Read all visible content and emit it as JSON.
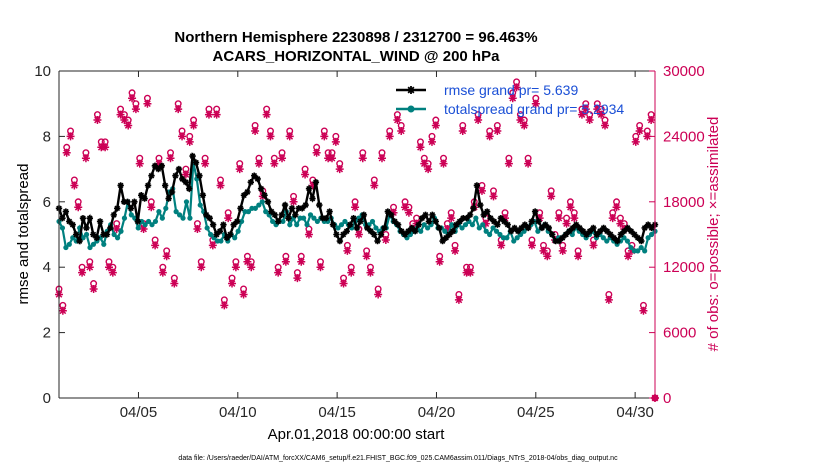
{
  "chart_data": {
    "type": "line",
    "title": "Northern Hemisphere 2230898 / 2312700 = 96.463%",
    "subtitle": "ACARS_HORIZONTAL_WIND @ 200 hPa",
    "xlabel": "Apr.01,2018 00:00:00 start",
    "ylabel_left": "rmse and totalspread",
    "ylabel_right": "# of obs: o=possible; ×=assimilated",
    "xlim": [
      1.0,
      31.0
    ],
    "ylim_left": [
      0,
      10
    ],
    "ylim_right": [
      0,
      30000
    ],
    "x_ticks": [
      {
        "value": 5,
        "label": "04/05"
      },
      {
        "value": 10,
        "label": "04/10"
      },
      {
        "value": 15,
        "label": "04/15"
      },
      {
        "value": 20,
        "label": "04/20"
      },
      {
        "value": 25,
        "label": "04/25"
      },
      {
        "value": 30,
        "label": "04/30"
      }
    ],
    "y_ticks_left": [
      "0",
      "2",
      "4",
      "6",
      "8",
      "10"
    ],
    "y_tick_values_left": [
      0,
      2,
      4,
      6,
      8,
      10
    ],
    "y_ticks_right": [
      "0",
      "6000",
      "12000",
      "18000",
      "24000",
      "30000"
    ],
    "y_tick_values_right": [
      0,
      6000,
      12000,
      18000,
      24000,
      30000
    ],
    "legend": [
      {
        "name": "rmse grand pr= 5.639",
        "color": "#000000",
        "marker": "star"
      },
      {
        "name": "totalspread grand pr= 5.2934",
        "color": "#00807f",
        "marker": "circle"
      }
    ],
    "footer": "data file: /Users/raeder/DAI/ATM_forcXX/CAM6_setup/f.e21.FHIST_BGC.f09_025.CAM6assim.011/Diags_NTrS_2018-04/obs_diag_output.nc",
    "colors": {
      "rmse": "#000000",
      "totalspread": "#00807f",
      "obs": "#cc0055",
      "legend_text": "#1a4fd6"
    },
    "series": [
      {
        "name": "rmse",
        "axis": "left",
        "values": [
          5.8,
          5.5,
          5.7,
          5.4,
          5.3,
          5.0,
          4.8,
          5.5,
          5.2,
          5.5,
          5.0,
          4.9,
          5.4,
          5.0,
          5.0,
          5.2,
          5.6,
          5.8,
          6.5,
          6.0,
          6.0,
          5.8,
          6.0,
          5.4,
          6.2,
          6.1,
          6.5,
          6.8,
          7.1,
          7.0,
          7.1,
          6.5,
          6.1,
          6.3,
          6.8,
          7.0,
          6.7,
          6.6,
          6.4,
          7.4,
          7.2,
          6.8,
          6.2,
          5.6,
          5.5,
          5.3,
          5.0,
          5.1,
          5.3,
          4.9,
          5.0,
          5.3,
          5.4,
          5.8,
          6.2,
          6.3,
          6.6,
          6.8,
          6.7,
          6.4,
          6.2,
          6.0,
          5.7,
          5.6,
          5.4,
          5.6,
          5.9,
          5.5,
          5.8,
          5.6,
          5.8,
          5.8,
          5.9,
          6.4,
          6.1,
          6.6,
          5.9,
          5.5,
          5.5,
          5.7,
          5.3,
          5.0,
          4.8,
          5.0,
          5.1,
          5.3,
          5.5,
          5.2,
          5.4,
          5.6,
          5.2,
          5.1,
          5.0,
          4.8,
          5.0,
          5.2,
          5.7,
          5.6,
          5.4,
          5.3,
          5.1,
          5.0,
          5.1,
          5.2,
          5.1,
          5.3,
          5.5,
          5.6,
          5.4,
          5.6,
          5.4,
          5.2,
          4.8,
          4.9,
          5.0,
          5.1,
          5.3,
          5.4,
          5.5,
          5.5,
          5.6,
          5.8,
          6.5,
          5.9,
          5.6,
          5.7,
          5.5,
          5.4,
          5.3,
          5.5,
          5.4,
          5.3,
          5.1,
          5.2,
          5.1,
          5.2,
          5.3,
          5.2,
          5.4,
          5.7,
          5.4,
          5.2,
          5.3,
          5.2,
          5.0,
          4.8,
          4.8,
          4.9,
          5.0,
          5.1,
          5.2,
          5.3,
          5.2,
          5.1,
          5.0,
          5.1,
          5.2,
          5.0,
          5.1,
          5.2,
          5.1,
          5.0,
          4.9,
          4.8,
          5.0,
          5.1,
          5.2,
          5.1,
          5.0,
          4.9,
          4.8,
          5.2,
          5.3,
          5.2,
          5.3
        ]
      },
      {
        "name": "totalspread",
        "axis": "left",
        "values": [
          5.4,
          5.2,
          4.6,
          4.7,
          4.9,
          4.8,
          5.2,
          4.9,
          5.0,
          4.6,
          4.7,
          4.8,
          4.9,
          4.7,
          5.1,
          5.3,
          5.0,
          4.9,
          5.1,
          5.5,
          6.0,
          5.6,
          5.5,
          5.2,
          5.4,
          5.3,
          5.4,
          5.3,
          5.4,
          5.7,
          5.5,
          5.8,
          6.3,
          6.4,
          5.7,
          5.6,
          5.5,
          6.0,
          5.5,
          7.2,
          6.7,
          5.9,
          5.7,
          5.2,
          5.0,
          4.9,
          4.8,
          4.8,
          5.0,
          4.8,
          5.0,
          4.9,
          5.1,
          5.4,
          5.7,
          5.7,
          5.8,
          5.8,
          5.9,
          6.0,
          5.7,
          5.6,
          5.4,
          5.3,
          5.4,
          5.4,
          5.7,
          5.3,
          5.5,
          5.3,
          5.5,
          5.5,
          5.3,
          5.6,
          5.5,
          5.4,
          5.5,
          5.4,
          5.4,
          5.5,
          5.3,
          5.2,
          5.3,
          5.4,
          5.3,
          5.2,
          5.4,
          5.5,
          5.6,
          5.3,
          5.3,
          5.4,
          5.2,
          5.1,
          5.2,
          5.2,
          5.6,
          5.4,
          5.3,
          5.1,
          5.0,
          4.9,
          5.0,
          5.1,
          5.2,
          5.1,
          5.3,
          5.2,
          5.3,
          5.5,
          5.2,
          5.2,
          5.1,
          5.0,
          5.3,
          5.1,
          5.3,
          5.2,
          5.3,
          5.4,
          5.3,
          5.5,
          5.2,
          5.3,
          5.1,
          5.0,
          5.2,
          5.1,
          5.0,
          4.9,
          4.9,
          5.1,
          4.8,
          4.9,
          5.0,
          5.1,
          5.2,
          5.3,
          5.4,
          5.1,
          5.2,
          5.3,
          5.1,
          5.0,
          4.8,
          4.9,
          4.9,
          5.0,
          5.1,
          5.0,
          5.2,
          5.1,
          5.0,
          4.9,
          5.0,
          5.1,
          4.9,
          5.0,
          4.9,
          4.8,
          4.9,
          4.8,
          4.7,
          4.8,
          4.9,
          4.8,
          4.6,
          4.5,
          4.5,
          4.6,
          4.5,
          4.9,
          5.0,
          5.1
        ]
      },
      {
        "name": "obs_possible",
        "axis": "right",
        "values": [
          10000,
          8500,
          23000,
          24500,
          20000,
          18000,
          12000,
          22500,
          12500,
          10500,
          26000,
          23500,
          23500,
          12500,
          12000,
          16000,
          26500,
          26000,
          25500,
          28000,
          27000,
          22000,
          16000,
          27500,
          18000,
          14500,
          22000,
          12000,
          13500,
          22500,
          11000,
          27000,
          24500,
          21000,
          24000,
          25500,
          16000,
          12500,
          22000,
          26500,
          14500,
          26500,
          20000,
          9000,
          17000,
          11000,
          12500,
          21500,
          10000,
          13000,
          12500,
          25000,
          22000,
          19000,
          26500,
          24500,
          22000,
          12000,
          22500,
          13000,
          24500,
          18500,
          11500,
          13000,
          21000,
          15500,
          20000,
          23000,
          12500,
          24500,
          22500,
          22500,
          24000,
          21500,
          11000,
          14000,
          12000,
          18000,
          15500,
          22500,
          13500,
          12000,
          20000,
          10000,
          22500,
          15000,
          24500,
          17500,
          26000,
          25000,
          18000,
          17500,
          16000,
          16500,
          23500,
          22000,
          21500,
          24000,
          25500,
          13000,
          22000,
          16000,
          17000,
          14000,
          9500,
          25000,
          12000,
          12000,
          18000,
          26000,
          19500,
          16500,
          24500,
          19000,
          25000,
          14500,
          17000,
          22000,
          28000,
          29000,
          26000,
          25500,
          22000,
          14500,
          27500,
          17000,
          14000,
          13500,
          19000,
          15000,
          17000,
          14000,
          16500,
          18000,
          17000,
          13500,
          26500,
          27000,
          26000,
          14500,
          27000,
          26500,
          25500,
          9500,
          17000,
          18000,
          16500,
          16000,
          13500,
          14000,
          24000,
          25000,
          8500,
          24500,
          26000,
          0
        ]
      },
      {
        "name": "obs_assimilated",
        "axis": "right",
        "values": [
          9500,
          8000,
          22500,
          24000,
          19500,
          17500,
          11500,
          22000,
          12000,
          10000,
          25500,
          23000,
          23000,
          12000,
          11500,
          15500,
          26000,
          25500,
          25000,
          27500,
          26500,
          21500,
          15500,
          27000,
          17500,
          14000,
          21500,
          11500,
          13000,
          22000,
          10500,
          26500,
          24000,
          20500,
          23500,
          25000,
          15500,
          12000,
          21500,
          26000,
          14000,
          26000,
          19500,
          8500,
          16500,
          10500,
          12000,
          21000,
          9500,
          12500,
          12000,
          24500,
          21500,
          18500,
          26000,
          24000,
          21500,
          11500,
          22000,
          12500,
          24000,
          18000,
          11000,
          12500,
          20500,
          15000,
          19500,
          22500,
          12000,
          24000,
          22000,
          22000,
          23500,
          21000,
          10500,
          13500,
          11500,
          17500,
          15000,
          22000,
          13000,
          11500,
          19500,
          9500,
          22000,
          14500,
          24000,
          17000,
          25500,
          24500,
          17500,
          17000,
          15500,
          16000,
          23000,
          21500,
          21000,
          23500,
          25000,
          12500,
          21500,
          15500,
          16500,
          13500,
          9000,
          24500,
          11500,
          11500,
          17500,
          25500,
          19000,
          16000,
          24000,
          18500,
          24500,
          14000,
          16500,
          21500,
          27500,
          28500,
          25500,
          25000,
          21500,
          14000,
          27000,
          16500,
          13500,
          13000,
          18500,
          14500,
          16500,
          13500,
          16000,
          17500,
          16500,
          13000,
          26000,
          26500,
          25500,
          14000,
          26500,
          26000,
          25000,
          9000,
          16500,
          17500,
          16000,
          15500,
          13000,
          13500,
          23500,
          24500,
          8000,
          24000,
          25500,
          0
        ]
      }
    ]
  }
}
